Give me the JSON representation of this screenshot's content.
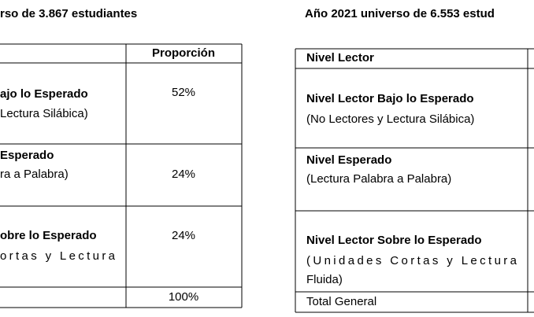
{
  "left_table": {
    "title": "rso de 3.867 estudiantes",
    "header": "Proporción",
    "rows": [
      {
        "label_bold": "ajo lo Esperado",
        "label": " Lectura Silábica)",
        "value": "52%"
      },
      {
        "label_bold": "Esperado",
        "label": "ra a Palabra)",
        "value": "24%"
      },
      {
        "label_bold": "obre lo Esperado",
        "label": "ortas    y    Lectura",
        "value": "24%"
      }
    ],
    "total": "100%"
  },
  "right_table": {
    "title": "Año 2021 universo de 6.553 estud",
    "header": "Nivel Lector",
    "rows": [
      {
        "label_bold": "Nivel Lector Bajo lo Esperado",
        "label": "(No Lectores y Lectura Silábica)"
      },
      {
        "label_bold": "Nivel Esperado",
        "label": "(Lectura Palabra a Palabra)"
      },
      {
        "label_bold": "Nivel Lector Sobre lo Esperado",
        "label": "(Unidades Cortas y Lectura",
        "label_2": "Fluida)"
      }
    ],
    "total": "Total General"
  }
}
